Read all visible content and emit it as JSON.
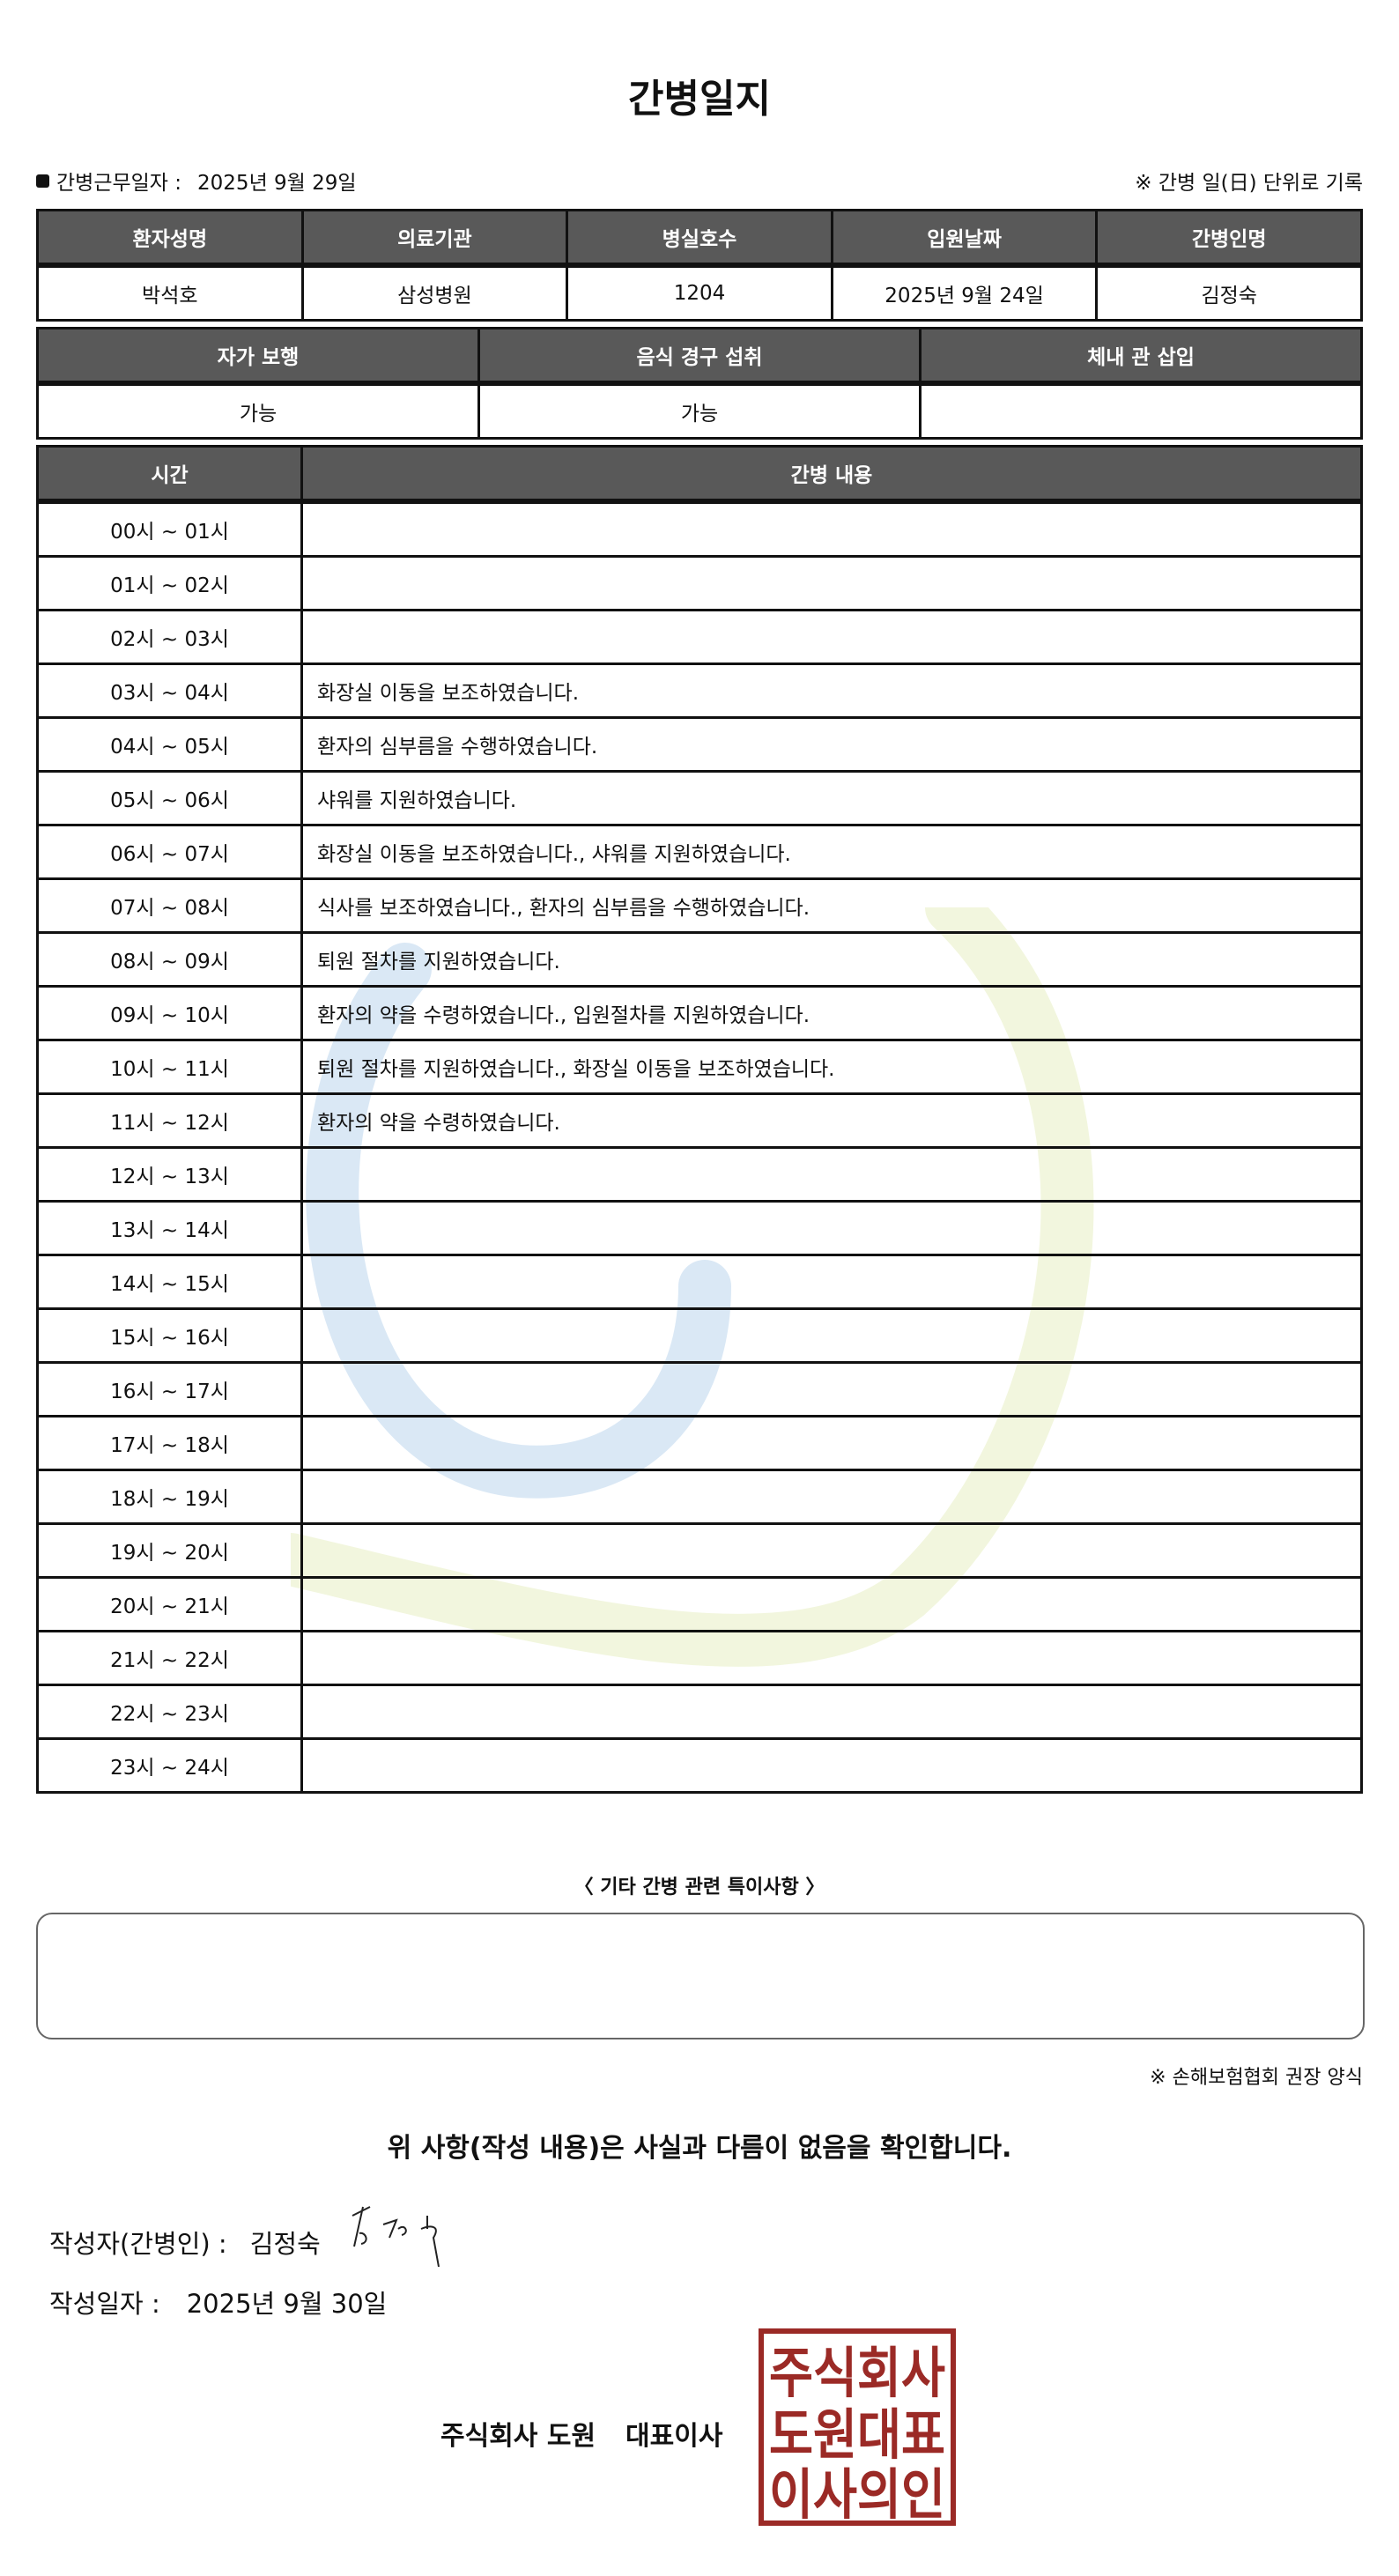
{
  "title": "간병일지",
  "work_date": {
    "label": "간병근무일자  :",
    "value": "2025년 9월 29일"
  },
  "unit_note": "※ 간병 일(日) 단위로 기록",
  "patient_table": {
    "headers": [
      "환자성명",
      "의료기관",
      "병실호수",
      "입원날짜",
      "간병인명"
    ],
    "values": [
      "박석호",
      "삼성병원",
      "1204",
      "2025년 9월 24일",
      "김정숙"
    ]
  },
  "status_table": {
    "headers": [
      "자가 보행",
      "음식 경구 섭취",
      "체내 관 삽입"
    ],
    "values": [
      "가능",
      "가능",
      ""
    ]
  },
  "log_table": {
    "headers": [
      "시간",
      "간병 내용"
    ],
    "rows": [
      {
        "time": "00시 ~ 01시",
        "content": ""
      },
      {
        "time": "01시 ~ 02시",
        "content": ""
      },
      {
        "time": "02시 ~ 03시",
        "content": ""
      },
      {
        "time": "03시 ~ 04시",
        "content": "화장실 이동을 보조하였습니다."
      },
      {
        "time": "04시 ~ 05시",
        "content": "환자의 심부름을 수행하였습니다."
      },
      {
        "time": "05시 ~ 06시",
        "content": "샤워를 지원하였습니다."
      },
      {
        "time": "06시 ~ 07시",
        "content": "화장실 이동을 보조하였습니다., 샤워를 지원하였습니다."
      },
      {
        "time": "07시 ~ 08시",
        "content": "식사를 보조하였습니다., 환자의 심부름을 수행하였습니다."
      },
      {
        "time": "08시 ~ 09시",
        "content": "퇴원 절차를 지원하였습니다."
      },
      {
        "time": "09시 ~ 10시",
        "content": "환자의 약을 수령하였습니다., 입원절차를 지원하였습니다."
      },
      {
        "time": "10시 ~ 11시",
        "content": "퇴원 절차를 지원하였습니다., 화장실 이동을 보조하였습니다."
      },
      {
        "time": "11시 ~ 12시",
        "content": "환자의 약을 수령하였습니다."
      },
      {
        "time": "12시 ~ 13시",
        "content": ""
      },
      {
        "time": "13시 ~ 14시",
        "content": ""
      },
      {
        "time": "14시 ~ 15시",
        "content": ""
      },
      {
        "time": "15시 ~ 16시",
        "content": ""
      },
      {
        "time": "16시 ~ 17시",
        "content": ""
      },
      {
        "time": "17시 ~ 18시",
        "content": ""
      },
      {
        "time": "18시 ~ 19시",
        "content": ""
      },
      {
        "time": "19시 ~ 20시",
        "content": ""
      },
      {
        "time": "20시 ~ 21시",
        "content": ""
      },
      {
        "time": "21시 ~ 22시",
        "content": ""
      },
      {
        "time": "22시 ~ 23시",
        "content": ""
      },
      {
        "time": "23시 ~ 24시",
        "content": ""
      }
    ]
  },
  "special_notes": {
    "label": "〈 기타 간병 관련 특이사항 〉",
    "value": ""
  },
  "form_note": "※ 손해보험협회 권장 양식",
  "confirmation": "위 사항(작성 내용)은 사실과 다름이 없음을 확인합니다.",
  "author": {
    "label": "작성자(간병인) :",
    "name": "김정숙",
    "signature": "김정숙"
  },
  "write_date": {
    "label": "작성일자 :",
    "value": "2025년 9월 30일"
  },
  "company": {
    "name": "주식회사 도원",
    "title": "대표이사"
  },
  "stamp": {
    "text": [
      "주식회사",
      "도원대표",
      "이사의인"
    ],
    "color": "#9b2a26"
  },
  "colors": {
    "header_bg": "#595959",
    "watermark_blue": "#5b9bd5",
    "watermark_green": "#c5d96b"
  }
}
